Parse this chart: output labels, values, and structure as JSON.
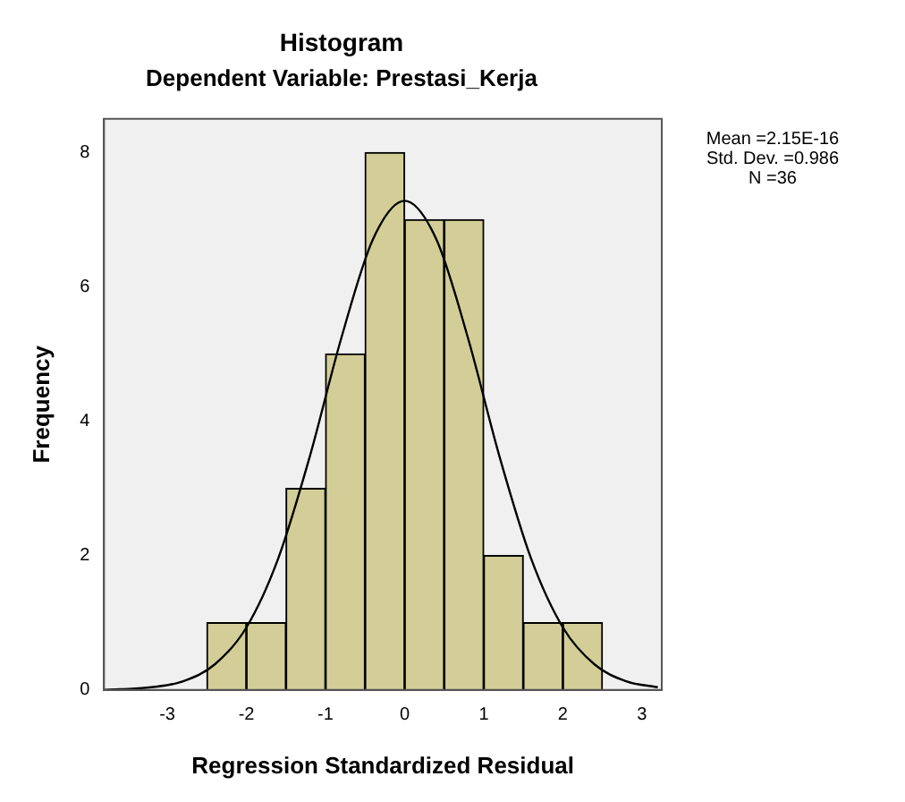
{
  "chart_data": {
    "type": "histogram",
    "title": "Histogram",
    "subtitle": "Dependent Variable: Prestasi_Kerja",
    "xlabel": "Regression Standardized Residual",
    "ylabel": "Frequency",
    "bins": [
      -2.5,
      -2,
      -1.5,
      -1,
      -0.5,
      0,
      0.5,
      1,
      1.5,
      2,
      2.5
    ],
    "values": [
      1,
      1,
      3,
      5,
      8,
      7,
      7,
      2,
      1,
      1
    ],
    "color": "#d3ce97",
    "series": [
      {
        "type": "line",
        "color": "#000000",
        "x": [
          -3.8,
          -3.6,
          -3.2,
          -2.8,
          -2.4,
          -2.0,
          -1.6,
          -1.2,
          -0.8,
          -0.4,
          0,
          0.4,
          0.8,
          1.2,
          1.6,
          2.0,
          2.4,
          2.8,
          3.2
        ],
        "values": [
          0.0,
          0.01,
          0.04,
          0.13,
          0.38,
          0.93,
          1.95,
          3.47,
          5.24,
          6.71,
          7.28,
          6.71,
          5.24,
          3.47,
          1.95,
          0.93,
          0.38,
          0.13,
          0.04
        ]
      }
    ],
    "xlim": [
      -3.8,
      3.25
    ],
    "xticks": [
      -3,
      -2,
      -1,
      0,
      1,
      2,
      3
    ],
    "ylim": [
      0,
      8.5
    ],
    "yticks": [
      0,
      2,
      4,
      6,
      8
    ],
    "grid": false,
    "legend": false,
    "annotations": [
      "Mean =2.15E-16",
      "Std. Dev. =0.986",
      "N =36"
    ]
  }
}
